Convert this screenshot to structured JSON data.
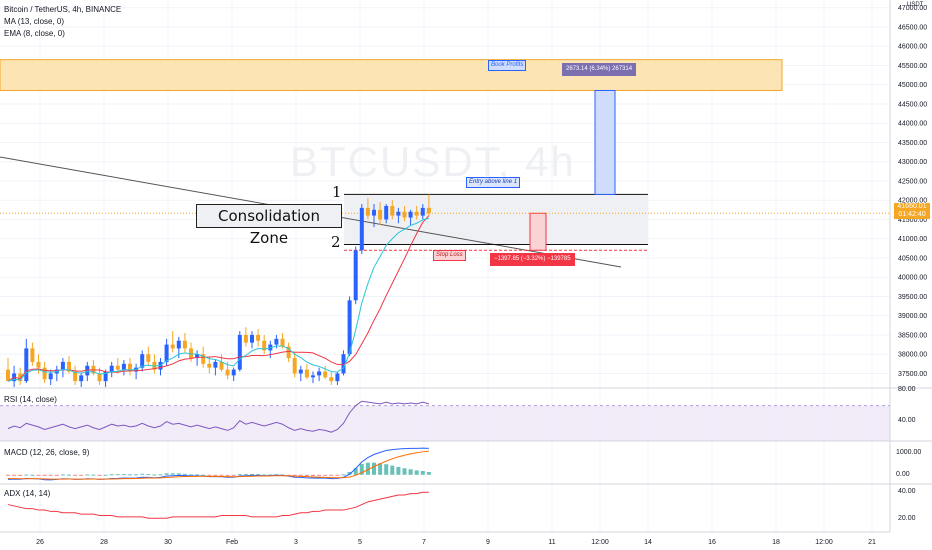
{
  "header": {
    "symbol_title": "Bitcoin / TetherUS, 4h, BINANCE",
    "ma_label": "MA (13, close, 0)",
    "ema_label": "EMA (8, close, 0)",
    "currency": "USDT"
  },
  "watermark": "BTCUSDT, 4h",
  "last_price": {
    "price": "41660.01",
    "countdown": "01:42:40"
  },
  "annotations": {
    "consolidation": "Consolidation Zone",
    "level1": "1",
    "level2": "2",
    "book_profits": "Book Profits",
    "entry": "Entry above line 1",
    "stop_loss": "Stop Loss",
    "target_box": "2673.14 (6.34%) 267314",
    "risk_box": "−1397.85 (−3.32%) −139785"
  },
  "indicators": {
    "rsi": {
      "label": "RSI (14, close)",
      "ticks": [
        "80.00",
        "40.00"
      ]
    },
    "macd": {
      "label": "MACD (12, 26, close, 9)",
      "ticks": [
        "1000.00",
        "0.00"
      ]
    },
    "adx": {
      "label": "ADX (14, 14)",
      "ticks": [
        "40.00",
        "20.00"
      ]
    }
  },
  "colors": {
    "up": "#2962ff",
    "down": "#f5a623",
    "ma": "#f23645",
    "ema": "#26c6da",
    "rsi": "#7e57c2",
    "macd": "#2962ff",
    "signal": "#ff6d00",
    "adx": "#f23645"
  },
  "chart_data": {
    "type": "candlestick",
    "title": "Bitcoin / TetherUS, 4h, BINANCE",
    "x_ticks": [
      "26",
      "28",
      "30",
      "Feb",
      "3",
      "5",
      "7",
      "9",
      "11",
      "12:00",
      "14",
      "16",
      "18",
      "12:00",
      "21"
    ],
    "y_ticks": [
      47000,
      46500,
      46000,
      45500,
      45000,
      44500,
      44000,
      43500,
      43000,
      42500,
      42000,
      41500,
      41000,
      40500,
      40000,
      39500,
      39000,
      38500,
      38000,
      37500
    ],
    "y_range": [
      37200,
      47200
    ],
    "levels": {
      "line1": 42150,
      "line2": 40850,
      "stop": 40700,
      "target_zone": [
        44850,
        45650
      ],
      "target": 44850
    },
    "candles": [
      [
        37600,
        37900,
        37400,
        37300
      ],
      [
        37300,
        37700,
        37150,
        37500
      ],
      [
        37500,
        37650,
        37200,
        37300
      ],
      [
        37300,
        38400,
        37250,
        38150
      ],
      [
        38150,
        38300,
        37700,
        37800
      ],
      [
        37800,
        38000,
        37500,
        37650
      ],
      [
        37650,
        37800,
        37250,
        37350
      ],
      [
        37350,
        37600,
        37200,
        37500
      ],
      [
        37500,
        37700,
        37300,
        37600
      ],
      [
        37600,
        37900,
        37400,
        37800
      ],
      [
        37800,
        37950,
        37500,
        37550
      ],
      [
        37550,
        37700,
        37200,
        37300
      ],
      [
        37300,
        37500,
        37150,
        37450
      ],
      [
        37450,
        37800,
        37300,
        37700
      ],
      [
        37700,
        37850,
        37450,
        37500
      ],
      [
        37500,
        37650,
        37200,
        37300
      ],
      [
        37300,
        37600,
        37150,
        37550
      ],
      [
        37550,
        37800,
        37400,
        37700
      ],
      [
        37700,
        37900,
        37500,
        37600
      ],
      [
        37600,
        37850,
        37450,
        37750
      ],
      [
        37750,
        37900,
        37450,
        37550
      ],
      [
        37550,
        37750,
        37350,
        37650
      ],
      [
        37650,
        38100,
        37550,
        38000
      ],
      [
        38000,
        38200,
        37700,
        37800
      ],
      [
        37800,
        38000,
        37500,
        37600
      ],
      [
        37600,
        37900,
        37450,
        37800
      ],
      [
        37800,
        38400,
        37700,
        38250
      ],
      [
        38250,
        38600,
        38050,
        38150
      ],
      [
        38150,
        38450,
        37900,
        38350
      ],
      [
        38350,
        38550,
        38050,
        38150
      ],
      [
        38150,
        38300,
        37800,
        37900
      ],
      [
        37900,
        38100,
        37700,
        38000
      ],
      [
        38000,
        38200,
        37650,
        37750
      ],
      [
        37750,
        37950,
        37500,
        37650
      ],
      [
        37650,
        37850,
        37450,
        37800
      ],
      [
        37800,
        38000,
        37550,
        37600
      ],
      [
        37600,
        37800,
        37350,
        37450
      ],
      [
        37450,
        37650,
        37300,
        37600
      ],
      [
        37600,
        38600,
        37550,
        38500
      ],
      [
        38500,
        38700,
        38200,
        38300
      ],
      [
        38300,
        38600,
        38150,
        38500
      ],
      [
        38500,
        38650,
        38200,
        38350
      ],
      [
        38350,
        38500,
        38000,
        38100
      ],
      [
        38100,
        38350,
        37900,
        38250
      ],
      [
        38250,
        38500,
        38150,
        38400
      ],
      [
        38400,
        38550,
        38150,
        38200
      ],
      [
        38200,
        38300,
        37800,
        37900
      ],
      [
        37900,
        38050,
        37400,
        37500
      ],
      [
        37500,
        37700,
        37300,
        37600
      ],
      [
        37600,
        37750,
        37350,
        37400
      ],
      [
        37400,
        37550,
        37250,
        37450
      ],
      [
        37450,
        37650,
        37300,
        37550
      ],
      [
        37550,
        37700,
        37350,
        37400
      ],
      [
        37400,
        37550,
        37200,
        37300
      ],
      [
        37300,
        37550,
        37200,
        37500
      ],
      [
        37500,
        38100,
        37450,
        38000
      ],
      [
        38000,
        39500,
        37950,
        39400
      ],
      [
        39400,
        40800,
        39300,
        40700
      ],
      [
        40700,
        41900,
        40600,
        41800
      ],
      [
        41800,
        42050,
        41500,
        41600
      ],
      [
        41600,
        41900,
        41300,
        41750
      ],
      [
        41750,
        41950,
        41350,
        41500
      ],
      [
        41500,
        41900,
        41400,
        41850
      ],
      [
        41850,
        42000,
        41500,
        41600
      ],
      [
        41600,
        41800,
        41400,
        41700
      ],
      [
        41700,
        41850,
        41450,
        41550
      ],
      [
        41550,
        41750,
        41350,
        41700
      ],
      [
        41700,
        41850,
        41500,
        41600
      ],
      [
        41600,
        41900,
        41500,
        41800
      ],
      [
        41800,
        42150,
        41600,
        41660
      ]
    ],
    "indicator_series": {
      "rsi": [
        44,
        47,
        45,
        50,
        48,
        46,
        43,
        45,
        47,
        49,
        46,
        44,
        46,
        48,
        45,
        43,
        46,
        49,
        47,
        48,
        46,
        47,
        50,
        47,
        45,
        47,
        52,
        49,
        50,
        48,
        46,
        48,
        46,
        44,
        46,
        44,
        42,
        45,
        53,
        49,
        51,
        49,
        47,
        49,
        51,
        49,
        45,
        42,
        44,
        42,
        41,
        43,
        42,
        40,
        43,
        50,
        62,
        70,
        75,
        74,
        73,
        72,
        74,
        72,
        73,
        72,
        73,
        72,
        74,
        72
      ],
      "macd": [
        -150,
        -140,
        -145,
        -120,
        -125,
        -135,
        -160,
        -165,
        -150,
        -130,
        -135,
        -150,
        -145,
        -130,
        -135,
        -150,
        -140,
        -120,
        -115,
        -105,
        -110,
        -105,
        -80,
        -85,
        -95,
        -85,
        -40,
        -30,
        -20,
        -25,
        -40,
        -35,
        -45,
        -60,
        -60,
        -65,
        -80,
        -80,
        -40,
        -30,
        -20,
        -20,
        -30,
        -25,
        -15,
        -20,
        -45,
        -80,
        -85,
        -100,
        -110,
        -105,
        -110,
        -125,
        -120,
        -80,
        20,
        200,
        420,
        560,
        660,
        730,
        790,
        820,
        840,
        850,
        860,
        860,
        870,
        860
      ],
      "signal": [
        -120,
        -125,
        -130,
        -128,
        -127,
        -129,
        -135,
        -141,
        -143,
        -140,
        -139,
        -141,
        -142,
        -140,
        -139,
        -141,
        -141,
        -137,
        -133,
        -127,
        -124,
        -120,
        -112,
        -106,
        -104,
        -100,
        -88,
        -76,
        -65,
        -57,
        -54,
        -50,
        -49,
        -51,
        -53,
        -55,
        -60,
        -64,
        -59,
        -53,
        -46,
        -41,
        -39,
        -36,
        -32,
        -30,
        -33,
        -42,
        -51,
        -61,
        -71,
        -78,
        -84,
        -92,
        -98,
        -94,
        -71,
        -17,
        70,
        168,
        266,
        359,
        445,
        520,
        584,
        637,
        681,
        717,
        748,
        770
      ],
      "adx": [
        30,
        29,
        28,
        27,
        27,
        26,
        26,
        25,
        25,
        24,
        24,
        24,
        23,
        23,
        23,
        22,
        22,
        22,
        21,
        21,
        21,
        21,
        21,
        20,
        20,
        20,
        20,
        21,
        21,
        21,
        21,
        21,
        21,
        21,
        21,
        22,
        22,
        22,
        22,
        22,
        21,
        21,
        21,
        21,
        21,
        22,
        22,
        23,
        24,
        24,
        25,
        25,
        26,
        26,
        26,
        26,
        27,
        28,
        30,
        32,
        33,
        34,
        35,
        36,
        37,
        37,
        38,
        38,
        39,
        39
      ]
    }
  }
}
